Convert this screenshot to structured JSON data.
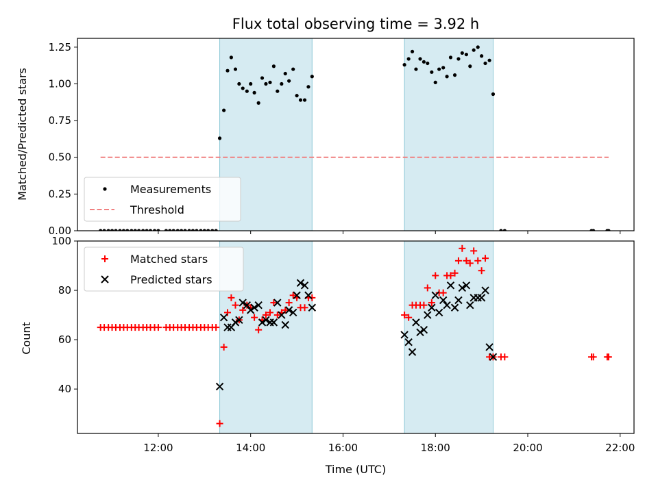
{
  "title": "Flux total observing time = 3.92 h",
  "xlabel": "Time (UTC)",
  "x_ticks": [
    "12:00",
    "14:00",
    "16:00",
    "18:00",
    "20:00",
    "22:00"
  ],
  "chart_data": [
    {
      "type": "scatter",
      "panel": "top",
      "ylabel": "Matched/Predicted stars",
      "x_units": "hours UTC",
      "xlim": [
        10.25,
        22.3
      ],
      "ylim": [
        0,
        1.31
      ],
      "y_ticks": [
        "0.00",
        "0.25",
        "0.50",
        "0.75",
        "1.00",
        "1.25"
      ],
      "shaded_intervals": [
        [
          13.33,
          15.33
        ],
        [
          17.33,
          19.25
        ]
      ],
      "legend": {
        "placement": "lower-left",
        "entries": [
          "Measurements",
          "Threshold"
        ]
      },
      "series": [
        {
          "name": "Measurements",
          "marker": "dot",
          "color": "#000000",
          "x": [
            10.75,
            10.83,
            10.92,
            11.0,
            11.08,
            11.17,
            11.25,
            11.33,
            11.42,
            11.5,
            11.58,
            11.67,
            11.75,
            11.83,
            11.92,
            12.0,
            12.17,
            12.25,
            12.33,
            12.42,
            12.5,
            12.58,
            12.67,
            12.75,
            12.83,
            12.92,
            13.0,
            13.08,
            13.17,
            13.25,
            13.33,
            13.42,
            13.5,
            13.58,
            13.67,
            13.75,
            13.83,
            13.92,
            14.0,
            14.08,
            14.17,
            14.25,
            14.33,
            14.42,
            14.5,
            14.58,
            14.67,
            14.75,
            14.83,
            14.92,
            15.0,
            15.08,
            15.17,
            15.25,
            15.33,
            17.33,
            17.42,
            17.5,
            17.58,
            17.67,
            17.75,
            17.83,
            17.92,
            18.0,
            18.08,
            18.17,
            18.25,
            18.33,
            18.42,
            18.5,
            18.58,
            18.67,
            18.75,
            18.83,
            18.92,
            19.0,
            19.08,
            19.17,
            19.25,
            19.42,
            19.5,
            21.38,
            21.42,
            21.72,
            21.75
          ],
          "y": [
            0,
            0,
            0,
            0,
            0,
            0,
            0,
            0,
            0,
            0,
            0,
            0,
            0,
            0,
            0,
            0,
            0,
            0,
            0,
            0,
            0,
            0,
            0,
            0,
            0,
            0,
            0,
            0,
            0,
            0,
            0.63,
            0.82,
            1.09,
            1.18,
            1.1,
            1.0,
            0.97,
            0.95,
            1.0,
            0.94,
            0.87,
            1.04,
            1.0,
            1.01,
            1.12,
            0.95,
            1.0,
            1.07,
            1.02,
            1.1,
            0.92,
            0.89,
            0.89,
            0.98,
            1.05,
            1.13,
            1.17,
            1.22,
            1.1,
            1.17,
            1.15,
            1.14,
            1.08,
            1.01,
            1.1,
            1.11,
            1.05,
            1.18,
            1.06,
            1.17,
            1.21,
            1.2,
            1.12,
            1.23,
            1.25,
            1.19,
            1.14,
            1.16,
            0.93,
            0,
            0,
            0,
            0,
            0,
            0
          ]
        },
        {
          "name": "Threshold",
          "type": "line",
          "style": "dashed",
          "color": "#f08080",
          "x": [
            10.75,
            21.75
          ],
          "y": [
            0.5,
            0.5
          ]
        }
      ]
    },
    {
      "type": "scatter",
      "panel": "bottom",
      "ylabel": "Count",
      "x_units": "hours UTC",
      "xlim": [
        10.25,
        22.3
      ],
      "ylim": [
        22,
        100
      ],
      "y_ticks": [
        "40",
        "60",
        "80",
        "100"
      ],
      "shaded_intervals": [
        [
          13.33,
          15.33
        ],
        [
          17.33,
          19.25
        ]
      ],
      "legend": {
        "placement": "top-left",
        "entries": [
          "Matched stars",
          "Predicted stars"
        ]
      },
      "series": [
        {
          "name": "Matched stars",
          "marker": "plus",
          "color": "#ff0000",
          "x": [
            10.75,
            10.83,
            10.92,
            11.0,
            11.08,
            11.17,
            11.25,
            11.33,
            11.42,
            11.5,
            11.58,
            11.67,
            11.75,
            11.83,
            11.92,
            12.0,
            12.17,
            12.25,
            12.33,
            12.42,
            12.5,
            12.58,
            12.67,
            12.75,
            12.83,
            12.92,
            13.0,
            13.08,
            13.17,
            13.25,
            13.33,
            13.42,
            13.5,
            13.58,
            13.67,
            13.75,
            13.83,
            13.92,
            14.0,
            14.08,
            14.17,
            14.25,
            14.33,
            14.42,
            14.5,
            14.58,
            14.67,
            14.75,
            14.83,
            14.92,
            15.0,
            15.08,
            15.17,
            15.25,
            15.33,
            17.33,
            17.42,
            17.5,
            17.58,
            17.67,
            17.75,
            17.83,
            17.92,
            18.0,
            18.08,
            18.17,
            18.25,
            18.33,
            18.42,
            18.5,
            18.58,
            18.67,
            18.75,
            18.83,
            18.92,
            19.0,
            19.08,
            19.17,
            19.25,
            19.42,
            19.5,
            21.38,
            21.42,
            21.72,
            21.75
          ],
          "y": [
            65,
            65,
            65,
            65,
            65,
            65,
            65,
            65,
            65,
            65,
            65,
            65,
            65,
            65,
            65,
            65,
            65,
            65,
            65,
            65,
            65,
            65,
            65,
            65,
            65,
            65,
            65,
            65,
            65,
            65,
            26,
            57,
            71,
            77,
            74,
            68,
            72,
            74,
            73,
            69,
            64,
            68,
            70,
            71,
            75,
            70,
            71,
            72,
            75,
            78,
            77,
            73,
            73,
            77,
            77,
            70,
            69,
            74,
            74,
            74,
            74,
            81,
            75,
            86,
            79,
            79,
            86,
            86,
            87,
            92,
            97,
            92,
            91,
            96,
            92,
            88,
            93,
            53,
            53,
            53,
            53,
            53,
            53,
            53,
            53
          ],
          "y_note": ""
        },
        {
          "name": "Predicted stars",
          "marker": "x",
          "color": "#000000",
          "x": [
            13.33,
            13.42,
            13.5,
            13.58,
            13.67,
            13.75,
            13.83,
            13.92,
            14.0,
            14.08,
            14.17,
            14.25,
            14.33,
            14.42,
            14.5,
            14.58,
            14.67,
            14.75,
            14.83,
            14.92,
            15.0,
            15.08,
            15.17,
            15.25,
            15.33,
            17.33,
            17.42,
            17.5,
            17.58,
            17.67,
            17.75,
            17.83,
            17.92,
            18.0,
            18.08,
            18.17,
            18.25,
            18.33,
            18.42,
            18.5,
            18.58,
            18.67,
            18.75,
            18.83,
            18.92,
            19.0,
            19.08,
            19.17,
            19.25
          ],
          "y": [
            41,
            69,
            65,
            65,
            67,
            68,
            75,
            74,
            72,
            73,
            74,
            67,
            68,
            67,
            67,
            75,
            70,
            66,
            72,
            71,
            78,
            83,
            82,
            78,
            73,
            62,
            59,
            55,
            67,
            63,
            64,
            70,
            73,
            78,
            71,
            76,
            74,
            82,
            73,
            76,
            81,
            82,
            74,
            77,
            77,
            77,
            80,
            57,
            53
          ]
        }
      ]
    }
  ]
}
